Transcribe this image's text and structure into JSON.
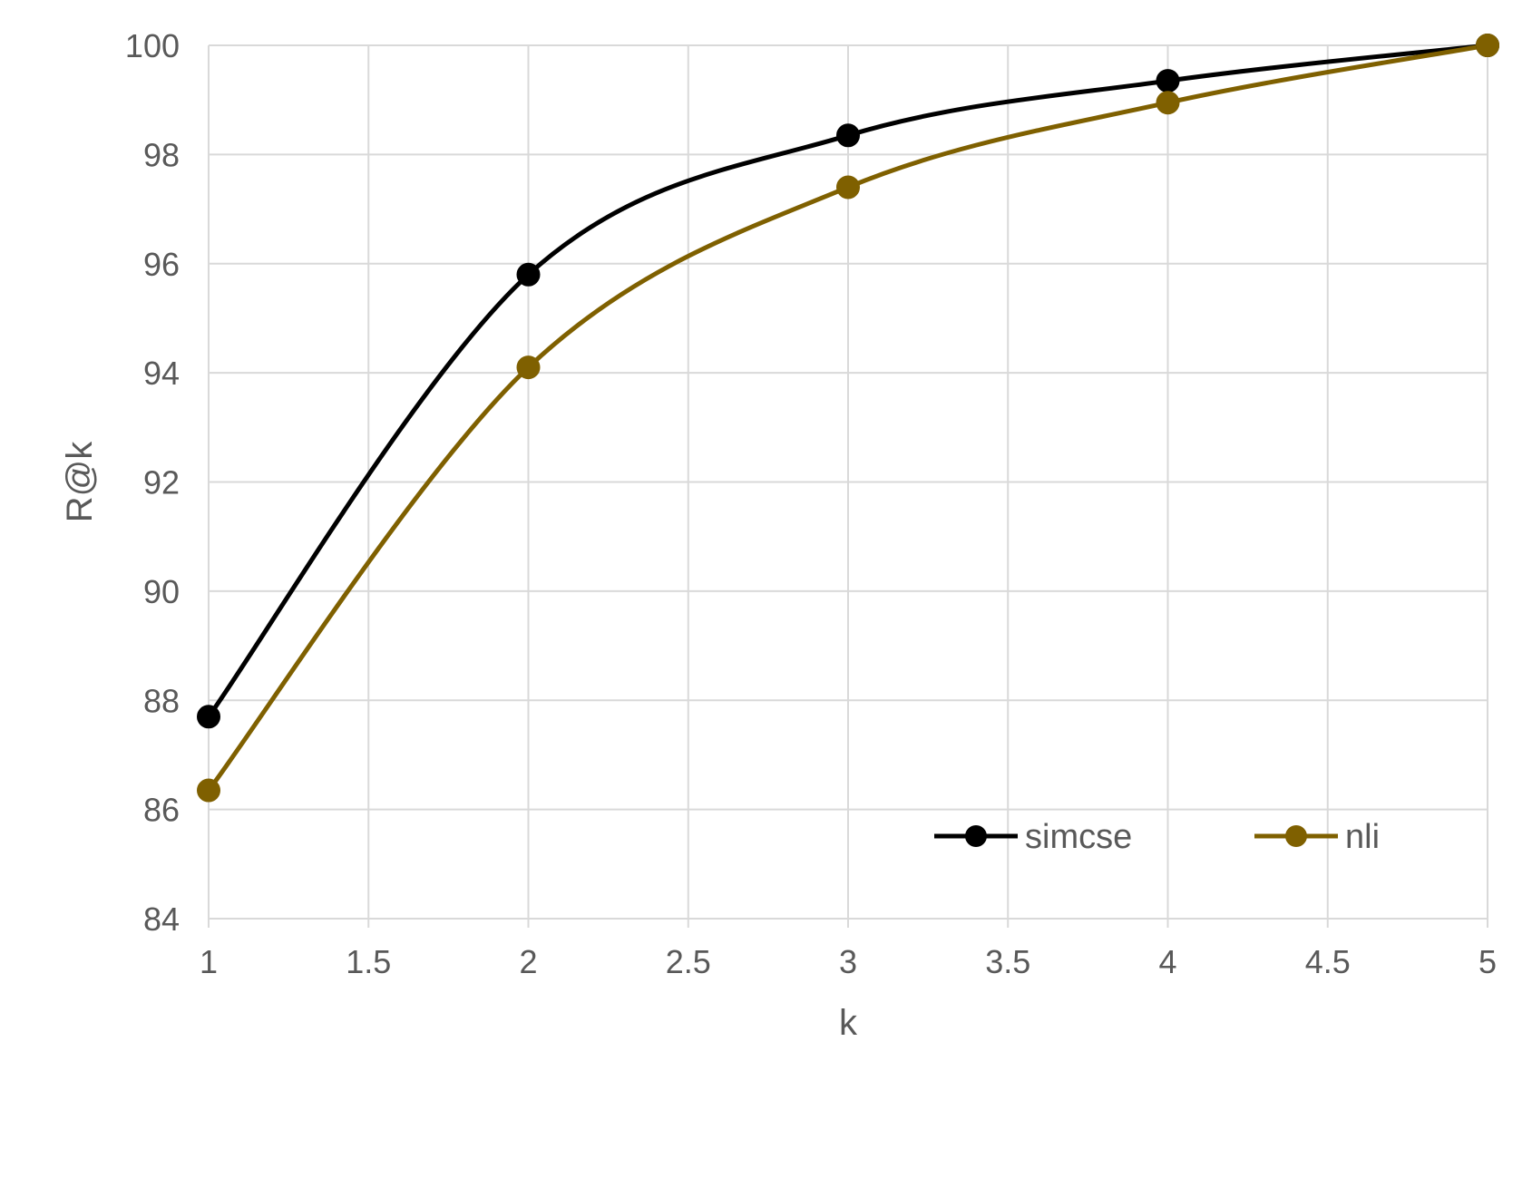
{
  "chart_data": {
    "type": "line",
    "title": "",
    "xlabel": "k",
    "ylabel": "R@k",
    "xlim": [
      1,
      5
    ],
    "ylim": [
      84,
      100
    ],
    "x_ticks": [
      "1",
      "1.5",
      "2",
      "2.5",
      "3",
      "3.5",
      "4",
      "4.5",
      "5"
    ],
    "y_ticks": [
      "84",
      "86",
      "88",
      "90",
      "92",
      "94",
      "96",
      "98",
      "100"
    ],
    "grid": true,
    "smooth": true,
    "legend_position": "bottom-right",
    "x": [
      1,
      2,
      3,
      4,
      5
    ],
    "series": [
      {
        "name": "simcse",
        "color": "#000000",
        "marker": "circle",
        "values": [
          87.7,
          95.8,
          98.35,
          99.35,
          100
        ]
      },
      {
        "name": "nli",
        "color": "#7f6000",
        "marker": "circle",
        "values": [
          86.35,
          94.1,
          97.4,
          98.95,
          100
        ]
      }
    ]
  }
}
